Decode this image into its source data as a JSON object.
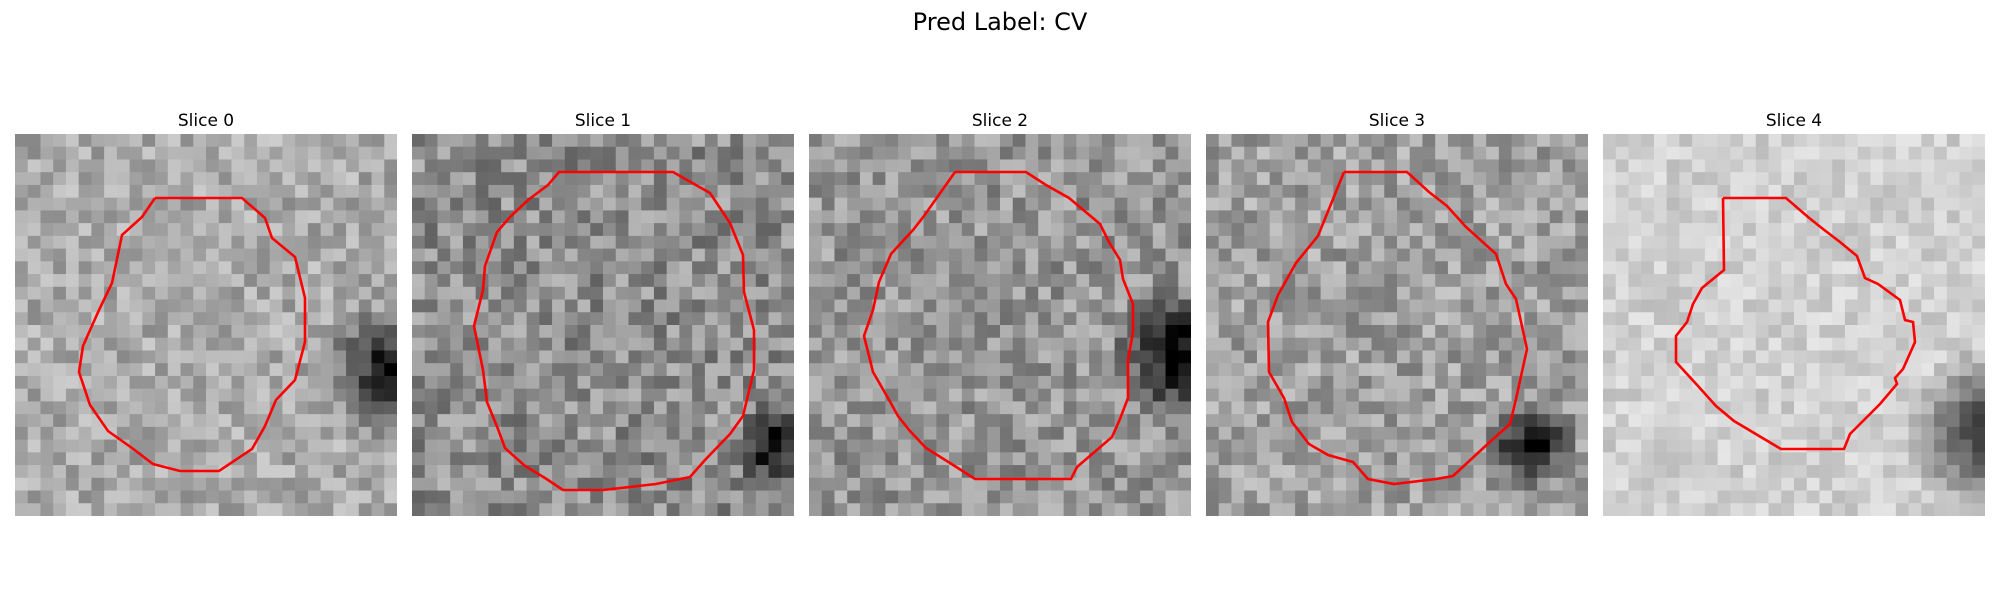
{
  "figure": {
    "title": "Pred Label: CV"
  },
  "colors": {
    "contour": "#ff0000",
    "background": "#ffffff"
  },
  "panels": [
    {
      "title": "Slice 0"
    },
    {
      "title": "Slice 1"
    },
    {
      "title": "Slice 2"
    },
    {
      "title": "Slice 3"
    },
    {
      "title": "Slice 4"
    }
  ]
}
